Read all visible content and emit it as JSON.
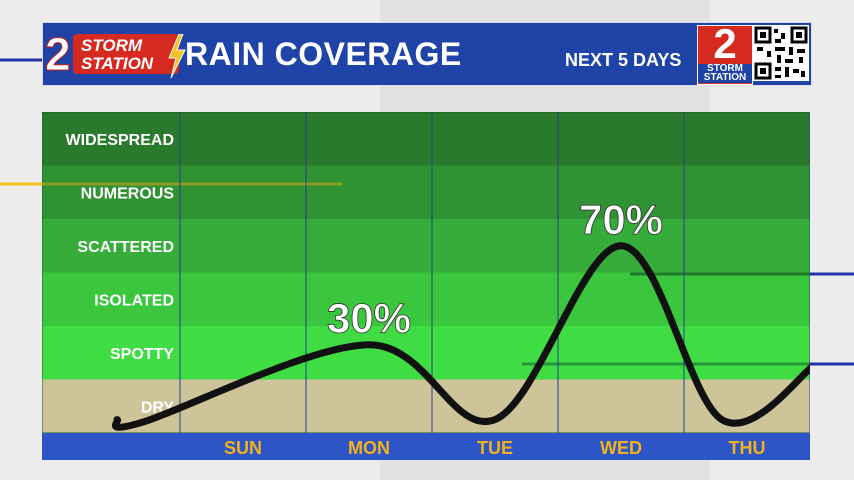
{
  "header": {
    "logo_left_number": "2",
    "logo_left_line1": "STORM",
    "logo_left_line2": "STATION",
    "title": "RAIN COVERAGE",
    "subtitle": "NEXT 5 DAYS",
    "logo_right_number": "2",
    "logo_right_line1": "STORM",
    "logo_right_line2": "STATION"
  },
  "colors": {
    "header_bg": "#1f43a6",
    "curve": "#111111",
    "dry": "#cdc49a",
    "spotty": "#3fdd43",
    "isolated": "#3ac73e",
    "scattered": "#36ad3a",
    "numerous": "#2f9233",
    "widespread": "#2a7a2e",
    "axis_bar": "#2d55c8",
    "day_label": "#f2b21b"
  },
  "chart_data": {
    "type": "line",
    "title": "RAIN COVERAGE",
    "subtitle": "NEXT 5 DAYS",
    "categories": [
      "SUN",
      "MON",
      "TUE",
      "WED",
      "THU"
    ],
    "levels": [
      "DRY",
      "SPOTTY",
      "ISOLATED",
      "SCATTERED",
      "NUMEROUS",
      "WIDESPREAD"
    ],
    "x": [
      -1,
      -0.8,
      1,
      2,
      3,
      3.8,
      4.55
    ],
    "y": [
      0.25,
      0.2,
      1.65,
      0.25,
      3.5,
      0.25,
      1.3
    ],
    "annotations": [
      {
        "category": "MON",
        "text": "30%"
      },
      {
        "category": "WED",
        "text": "70%"
      }
    ],
    "grid": true,
    "legend": "none"
  }
}
